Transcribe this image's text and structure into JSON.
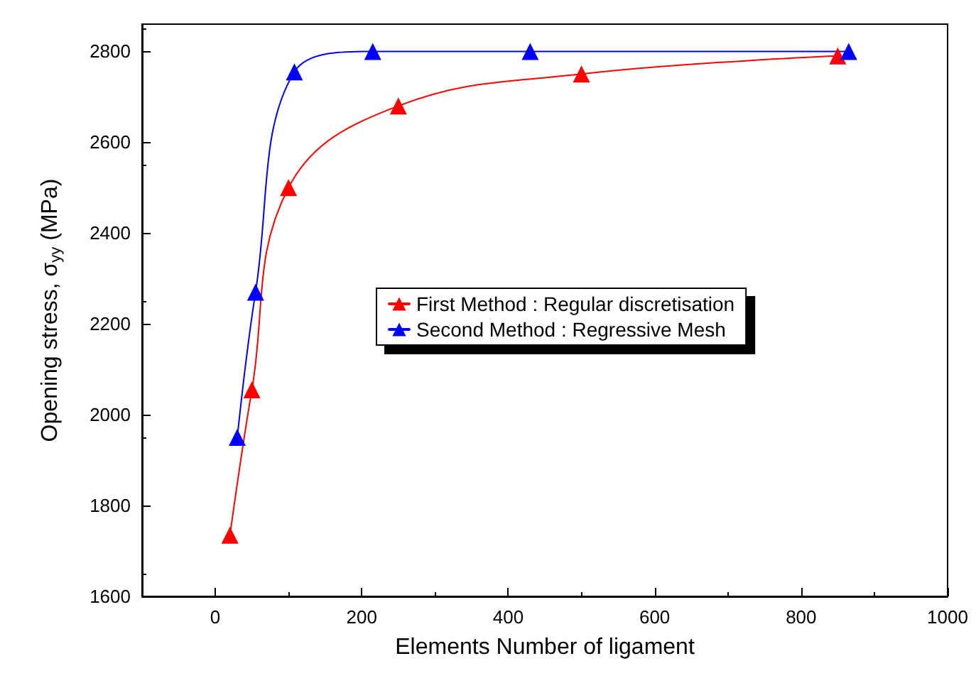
{
  "chart_data": {
    "type": "line",
    "xlabel": "Elements Number of ligament",
    "ylabel": "Opening stress, σ$_{yy}$ (MPa)",
    "series": [
      {
        "name": "First Method : Regular discretisation",
        "color": "#ff0000",
        "x": [
          20,
          50,
          100,
          250,
          500,
          850
        ],
        "values": [
          1735,
          2055,
          2500,
          2680,
          2750,
          2790
        ]
      },
      {
        "name": "Second Method : Regressive Mesh",
        "color": "#0000ff",
        "x": [
          30,
          55,
          108,
          215,
          430,
          865
        ],
        "values": [
          1950,
          2270,
          2755,
          2800,
          2800,
          2800
        ]
      }
    ],
    "xlim": [
      -100,
      1000
    ],
    "xticks": [
      0,
      200,
      400,
      600,
      800,
      1000
    ],
    "ylim": [
      1600,
      2860
    ],
    "yticks": [
      1600,
      1800,
      2000,
      2200,
      2400,
      2600,
      2800
    ],
    "marker": "triangle",
    "line_style": "solid",
    "legend": "right",
    "grid": false
  }
}
